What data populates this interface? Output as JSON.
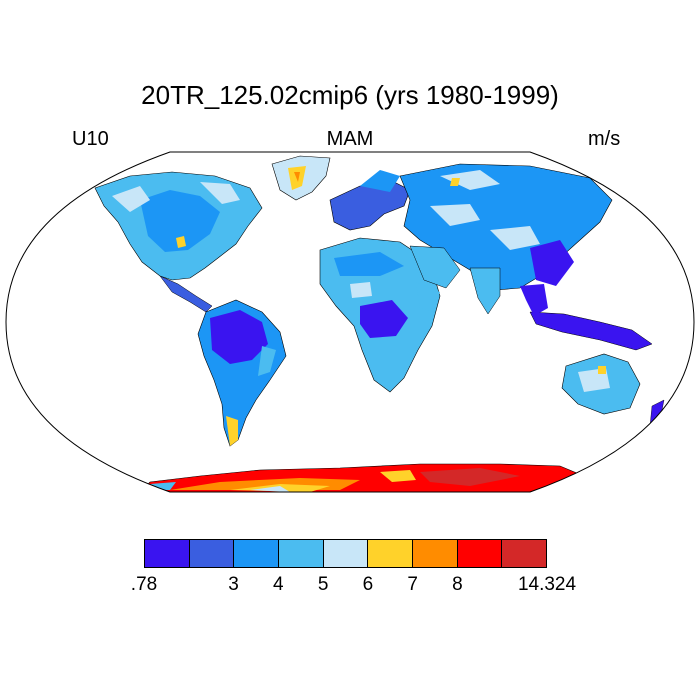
{
  "title": "20TR_125.02cmip6 (yrs 1980-1999)",
  "left_label": "U10",
  "center_label": "MAM",
  "right_label": "m/s",
  "colorbar": {
    "colors": [
      "#3a14f0",
      "#3a5ee0",
      "#1c96f5",
      "#4bbcf0",
      "#c8e6f8",
      "#ffd22a",
      "#ff8c00",
      "#ff0000",
      "#d42828"
    ],
    "tick_labels": [
      ".78",
      "3",
      "4",
      "5",
      "6",
      "7",
      "8",
      "14.324"
    ]
  }
}
